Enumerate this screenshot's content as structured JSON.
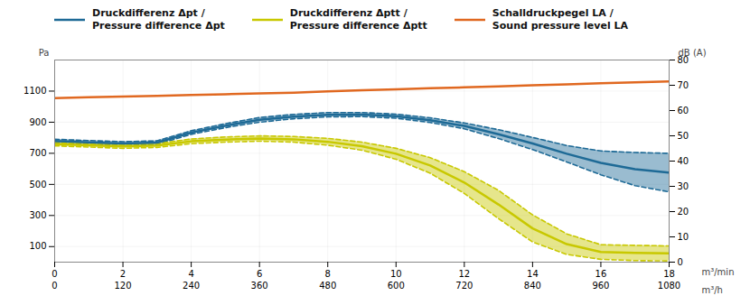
{
  "chart_data": {
    "type": "line",
    "xlabel": "m³/min",
    "x2label": "m³/h",
    "ylabel": "Pa",
    "y2label": "dB (A)",
    "x": [
      0,
      1,
      2,
      3,
      4,
      5,
      6,
      7,
      8,
      9,
      10,
      11,
      12,
      13,
      14,
      15,
      16,
      17,
      18
    ],
    "xlim": [
      0,
      18
    ],
    "xticks": [
      0,
      2,
      4,
      6,
      8,
      10,
      12,
      14,
      16,
      18
    ],
    "x2ticks": [
      {
        "value": 0,
        "label": "0"
      },
      {
        "value": 2,
        "label": "120"
      },
      {
        "value": 4,
        "label": "240"
      },
      {
        "value": 6,
        "label": "360"
      },
      {
        "value": 8,
        "label": "480"
      },
      {
        "value": 10,
        "label": "600"
      },
      {
        "value": 12,
        "label": "720"
      },
      {
        "value": 14,
        "label": "840"
      },
      {
        "value": 16,
        "label": "960"
      },
      {
        "value": 18,
        "label": "1080"
      }
    ],
    "ylim": [
      0,
      1300
    ],
    "yticks": [
      100,
      300,
      500,
      700,
      900,
      1100
    ],
    "y2lim": [
      0,
      80
    ],
    "y2ticks": [
      0,
      10,
      20,
      30,
      40,
      50,
      60,
      70,
      80
    ],
    "grid": true,
    "legend": "top",
    "series": [
      {
        "name": "Druckdifferenz Δpt /\nPressure difference Δpt",
        "color": "#1e6a96",
        "values": [
          779,
          771,
          763,
          769,
          833,
          877,
          915,
          936,
          948,
          949,
          939,
          913,
          876,
          823,
          763,
          697,
          638,
          598,
          576
        ],
        "lower": [
          768,
          760,
          752,
          758,
          822,
          865,
          900,
          922,
          934,
          936,
          926,
          898,
          858,
          795,
          724,
          644,
          562,
          492,
          452
        ],
        "upper": [
          790,
          782,
          775,
          780,
          845,
          890,
          930,
          950,
          962,
          962,
          952,
          928,
          895,
          852,
          802,
          750,
          715,
          705,
          700
        ]
      },
      {
        "name": "Druckdifferenz Δptt /\nPressure difference Δptt",
        "color": "#c8c800",
        "values": [
          759,
          751,
          744,
          750,
          777,
          788,
          795,
          790,
          774,
          746,
          697,
          622,
          512,
          371,
          217,
          116,
          65,
          59,
          56
        ],
        "lower": [
          748,
          740,
          732,
          738,
          762,
          772,
          778,
          772,
          752,
          720,
          662,
          572,
          442,
          280,
          130,
          50,
          18,
          10,
          8
        ],
        "upper": [
          770,
          763,
          756,
          762,
          792,
          805,
          812,
          808,
          796,
          772,
          732,
          672,
          582,
          462,
          304,
          182,
          112,
          108,
          104
        ]
      },
      {
        "name": "Schalldruckpegel LA /\nSound pressure level LA",
        "color": "#e06820",
        "values": [
          1055,
          1060,
          1065,
          1070,
          1075,
          1080,
          1085,
          1090,
          1098,
          1106,
          1112,
          1118,
          1124,
          1130,
          1138,
          1144,
          1150,
          1156,
          1162
        ]
      }
    ]
  }
}
